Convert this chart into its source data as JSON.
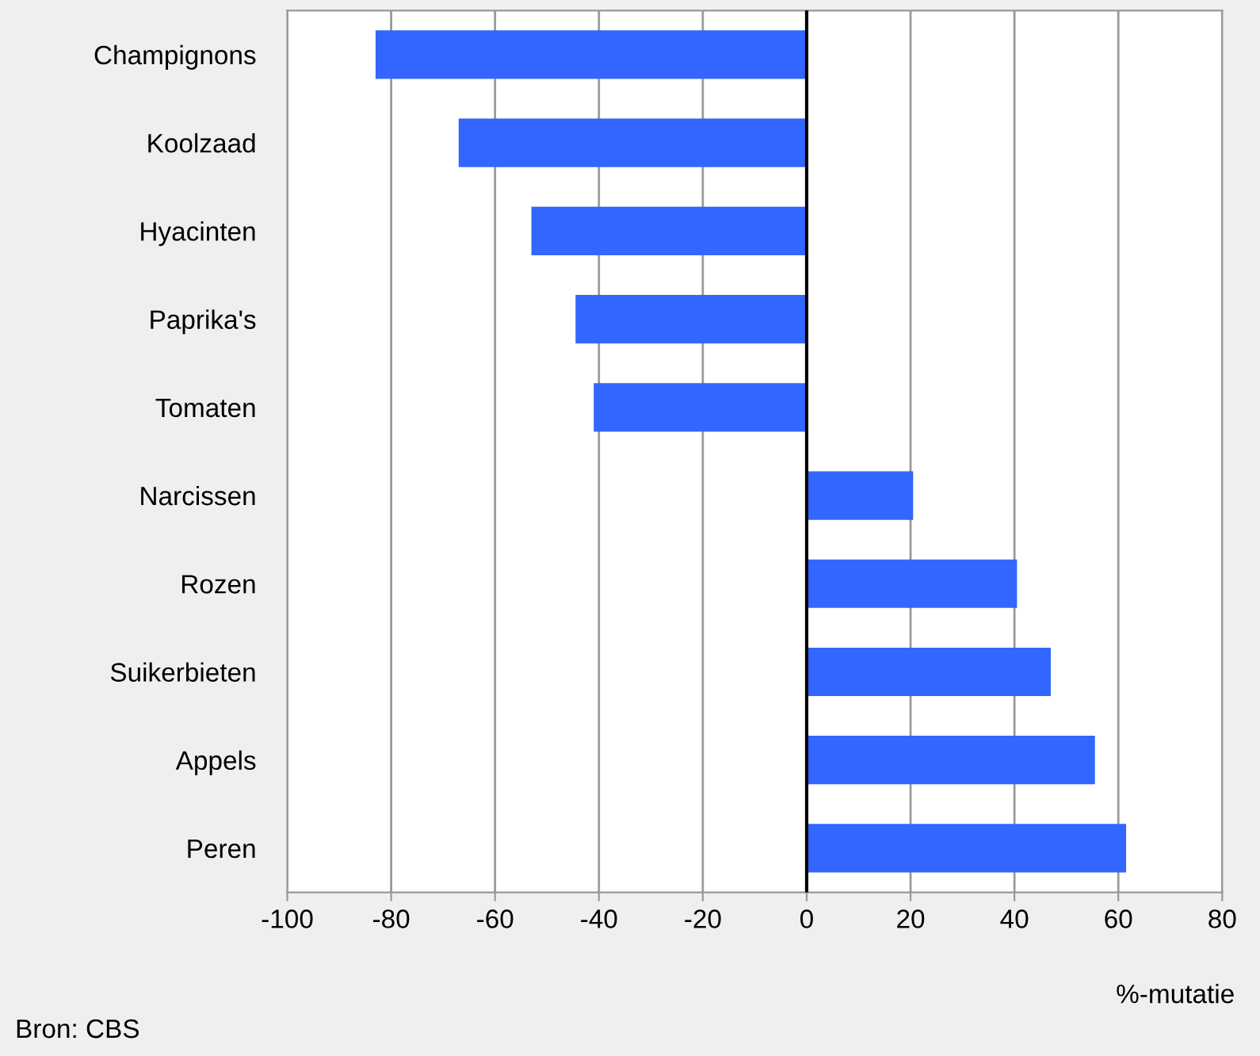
{
  "chart_data": {
    "type": "bar",
    "orientation": "horizontal",
    "categories": [
      "Champignons",
      "Koolzaad",
      "Hyacinten",
      "Paprika's",
      "Tomaten",
      "Narcissen",
      "Rozen",
      "Suikerbieten",
      "Appels",
      "Peren"
    ],
    "values": [
      -83,
      -67,
      -53,
      -44.5,
      -41,
      20.5,
      40.5,
      47,
      55.5,
      61.5
    ],
    "color": "#3366ff",
    "xlim": [
      -100,
      80
    ],
    "xticks": [
      -100,
      -80,
      -60,
      -40,
      -20,
      0,
      20,
      40,
      60,
      80
    ],
    "grid": "x",
    "xlabel": "%-mutatie",
    "annotations": [
      "Bron: CBS"
    ],
    "ref_lines": [
      {
        "axis": "x",
        "value": 0,
        "color": "#000000"
      }
    ]
  }
}
